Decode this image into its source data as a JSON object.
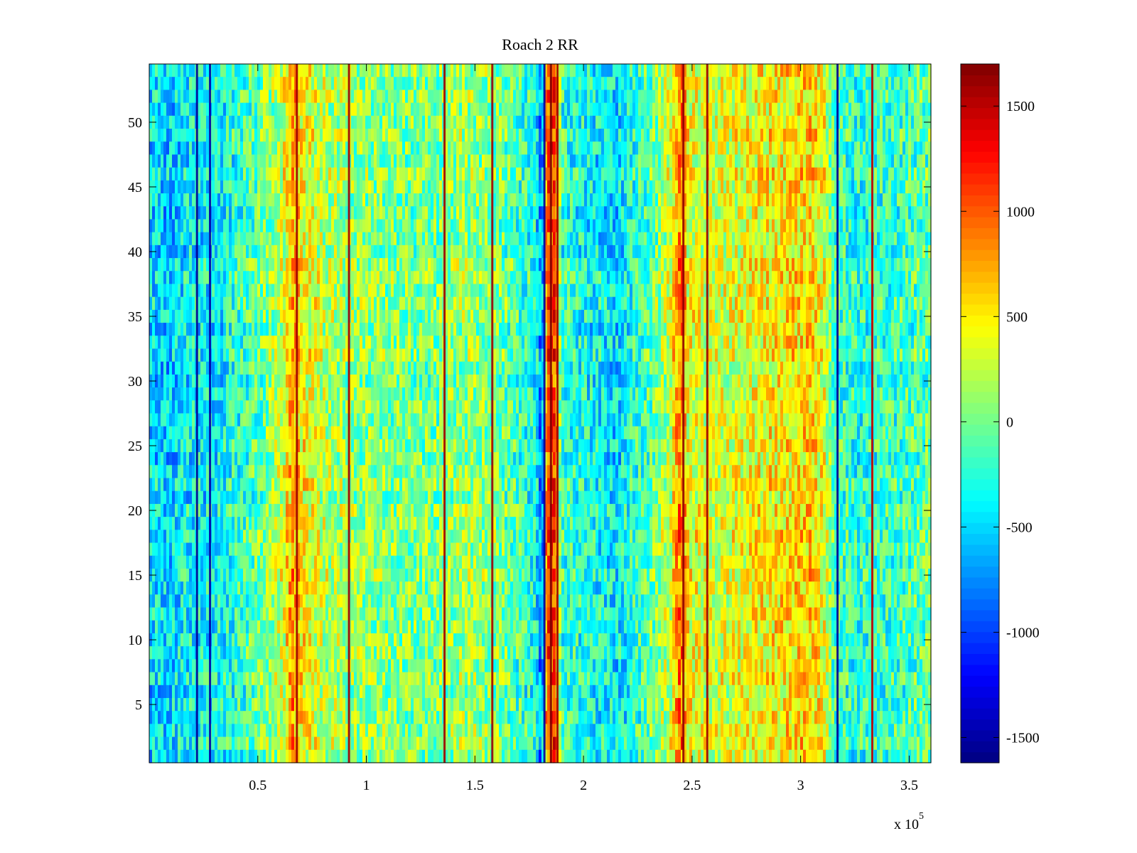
{
  "chart_data": {
    "type": "heatmap",
    "title": "Roach 2 RR",
    "xlabel": "",
    "ylabel": "",
    "x_exponent_label": "x 10",
    "x_exponent_power": "5",
    "xlim": [
      0,
      360000
    ],
    "ylim": [
      0.5,
      54.5
    ],
    "x_ticks": [
      {
        "value": 50000,
        "label": "0.5"
      },
      {
        "value": 100000,
        "label": "1"
      },
      {
        "value": 150000,
        "label": "1.5"
      },
      {
        "value": 200000,
        "label": "2"
      },
      {
        "value": 250000,
        "label": "2.5"
      },
      {
        "value": 300000,
        "label": "3"
      },
      {
        "value": 350000,
        "label": "3.5"
      }
    ],
    "y_ticks": [
      {
        "value": 5,
        "label": "5"
      },
      {
        "value": 10,
        "label": "10"
      },
      {
        "value": 15,
        "label": "15"
      },
      {
        "value": 20,
        "label": "20"
      },
      {
        "value": 25,
        "label": "25"
      },
      {
        "value": 30,
        "label": "30"
      },
      {
        "value": 35,
        "label": "35"
      },
      {
        "value": 40,
        "label": "40"
      },
      {
        "value": 45,
        "label": "45"
      },
      {
        "value": 50,
        "label": "50"
      }
    ],
    "rows": 54,
    "colormap": "jet",
    "clim": [
      -1620,
      1700
    ],
    "colorbar_ticks": [
      {
        "value": 1500,
        "label": "1500"
      },
      {
        "value": 1000,
        "label": "1000"
      },
      {
        "value": 500,
        "label": "500"
      },
      {
        "value": 0,
        "label": "0"
      },
      {
        "value": -500,
        "label": "-500"
      },
      {
        "value": -1000,
        "label": "-1000"
      },
      {
        "value": -1500,
        "label": "-1500"
      }
    ],
    "column_profile": [
      {
        "x": 0,
        "value": -450
      },
      {
        "x": 10000,
        "value": -500
      },
      {
        "x": 20000,
        "value": -350
      },
      {
        "x": 30000,
        "value": -400
      },
      {
        "x": 45000,
        "value": -150
      },
      {
        "x": 55000,
        "value": 50
      },
      {
        "x": 62000,
        "value": 350
      },
      {
        "x": 66000,
        "value": 800
      },
      {
        "x": 70000,
        "value": 500
      },
      {
        "x": 80000,
        "value": 250
      },
      {
        "x": 95000,
        "value": 100
      },
      {
        "x": 110000,
        "value": 50
      },
      {
        "x": 130000,
        "value": 0
      },
      {
        "x": 145000,
        "value": 150
      },
      {
        "x": 160000,
        "value": 50
      },
      {
        "x": 170000,
        "value": -150
      },
      {
        "x": 178000,
        "value": -300
      },
      {
        "x": 181000,
        "value": -900
      },
      {
        "x": 183000,
        "value": 1100
      },
      {
        "x": 187000,
        "value": 1100
      },
      {
        "x": 190000,
        "value": -200
      },
      {
        "x": 200000,
        "value": -300
      },
      {
        "x": 215000,
        "value": -450
      },
      {
        "x": 230000,
        "value": -100
      },
      {
        "x": 240000,
        "value": 300
      },
      {
        "x": 245000,
        "value": 1000
      },
      {
        "x": 248000,
        "value": 450
      },
      {
        "x": 260000,
        "value": 300
      },
      {
        "x": 280000,
        "value": 450
      },
      {
        "x": 295000,
        "value": 550
      },
      {
        "x": 305000,
        "value": 600
      },
      {
        "x": 311000,
        "value": 400
      },
      {
        "x": 315000,
        "value": -100
      },
      {
        "x": 325000,
        "value": -250
      },
      {
        "x": 340000,
        "value": -200
      },
      {
        "x": 360000,
        "value": -50
      }
    ],
    "vertical_lines": [
      {
        "x": 22000,
        "value": -1550
      },
      {
        "x": 28000,
        "value": -1500
      },
      {
        "x": 68000,
        "value": 1600
      },
      {
        "x": 92000,
        "value": 1600
      },
      {
        "x": 136000,
        "value": 1600
      },
      {
        "x": 158000,
        "value": 1600
      },
      {
        "x": 182000,
        "value": -1500
      },
      {
        "x": 185000,
        "value": 1700
      },
      {
        "x": 188000,
        "value": 1600
      },
      {
        "x": 246000,
        "value": 1650
      },
      {
        "x": 257000,
        "value": 1600
      },
      {
        "x": 317000,
        "value": -1550
      },
      {
        "x": 333000,
        "value": 1500
      }
    ],
    "noise_amplitude": 420
  }
}
